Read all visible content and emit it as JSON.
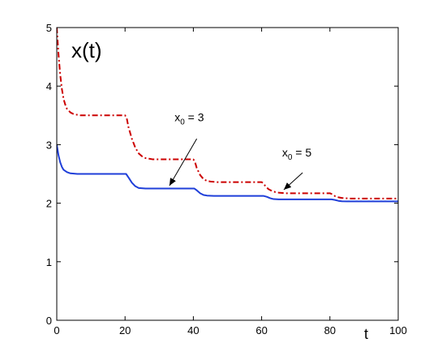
{
  "chart_data": {
    "type": "line",
    "ylabel": "x(t)",
    "xlabel": "t",
    "xlim": [
      0,
      100
    ],
    "ylim": [
      0,
      5
    ],
    "xticks": [
      0,
      20,
      40,
      60,
      80,
      100
    ],
    "yticks": [
      0,
      1,
      2,
      3,
      4,
      5
    ],
    "grid": false,
    "series": [
      {
        "style": "solid",
        "color": "#1f3fd9",
        "x": [
          0,
          0.5,
          1,
          1.5,
          2,
          3,
          4,
          6,
          10,
          15,
          19.5,
          20.3,
          21,
          22,
          23,
          24,
          26,
          30,
          35,
          39.5,
          40.3,
          41,
          42,
          43,
          44,
          46,
          50,
          55,
          59.5,
          60.5,
          61.5,
          62.5,
          63.5,
          65,
          70,
          75,
          79.5,
          80.5,
          81.5,
          82.5,
          83.5,
          85,
          90,
          95,
          100
        ],
        "y": [
          3.0,
          2.82,
          2.7,
          2.62,
          2.57,
          2.53,
          2.51,
          2.5,
          2.5,
          2.5,
          2.5,
          2.5,
          2.44,
          2.35,
          2.29,
          2.26,
          2.25,
          2.25,
          2.25,
          2.25,
          2.25,
          2.22,
          2.17,
          2.14,
          2.13,
          2.125,
          2.125,
          2.125,
          2.125,
          2.125,
          2.11,
          2.085,
          2.07,
          2.065,
          2.065,
          2.065,
          2.065,
          2.065,
          2.055,
          2.04,
          2.033,
          2.03,
          2.03,
          2.03,
          2.03
        ]
      },
      {
        "style": "dash-dot",
        "color": "#cc0000",
        "x": [
          0,
          0.5,
          1,
          1.5,
          2,
          2.5,
          3,
          4,
          5,
          7,
          10,
          15,
          20,
          20.5,
          21,
          22,
          23,
          24,
          25,
          26,
          28,
          30,
          35,
          40,
          40.5,
          41,
          42,
          43,
          44,
          45,
          47,
          50,
          55,
          60,
          60.5,
          61,
          62,
          63,
          64,
          65,
          67,
          70,
          75,
          80,
          80.8,
          81.5,
          82.5,
          83.5,
          84.5,
          86,
          90,
          95,
          100
        ],
        "y": [
          5.0,
          4.55,
          4.2,
          3.95,
          3.78,
          3.68,
          3.61,
          3.55,
          3.52,
          3.5,
          3.5,
          3.5,
          3.5,
          3.45,
          3.3,
          3.1,
          2.95,
          2.85,
          2.8,
          2.77,
          2.75,
          2.75,
          2.75,
          2.75,
          2.7,
          2.6,
          2.48,
          2.41,
          2.38,
          2.37,
          2.36,
          2.36,
          2.36,
          2.36,
          2.34,
          2.3,
          2.24,
          2.21,
          2.19,
          2.18,
          2.17,
          2.17,
          2.17,
          2.17,
          2.15,
          2.12,
          2.1,
          2.09,
          2.085,
          2.08,
          2.08,
          2.08,
          2.08
        ]
      }
    ],
    "annotations": [
      {
        "base": "x",
        "sub": "0",
        "rest": " = 3",
        "text_at": [
          34.5,
          3.4
        ],
        "arrow_from": [
          41,
          3.1
        ],
        "arrow_to": [
          33,
          2.3
        ]
      },
      {
        "base": "x",
        "sub": "0",
        "rest": " = 5",
        "text_at": [
          66,
          2.8
        ],
        "arrow_from": [
          72,
          2.52
        ],
        "arrow_to": [
          66.5,
          2.23
        ]
      }
    ]
  }
}
